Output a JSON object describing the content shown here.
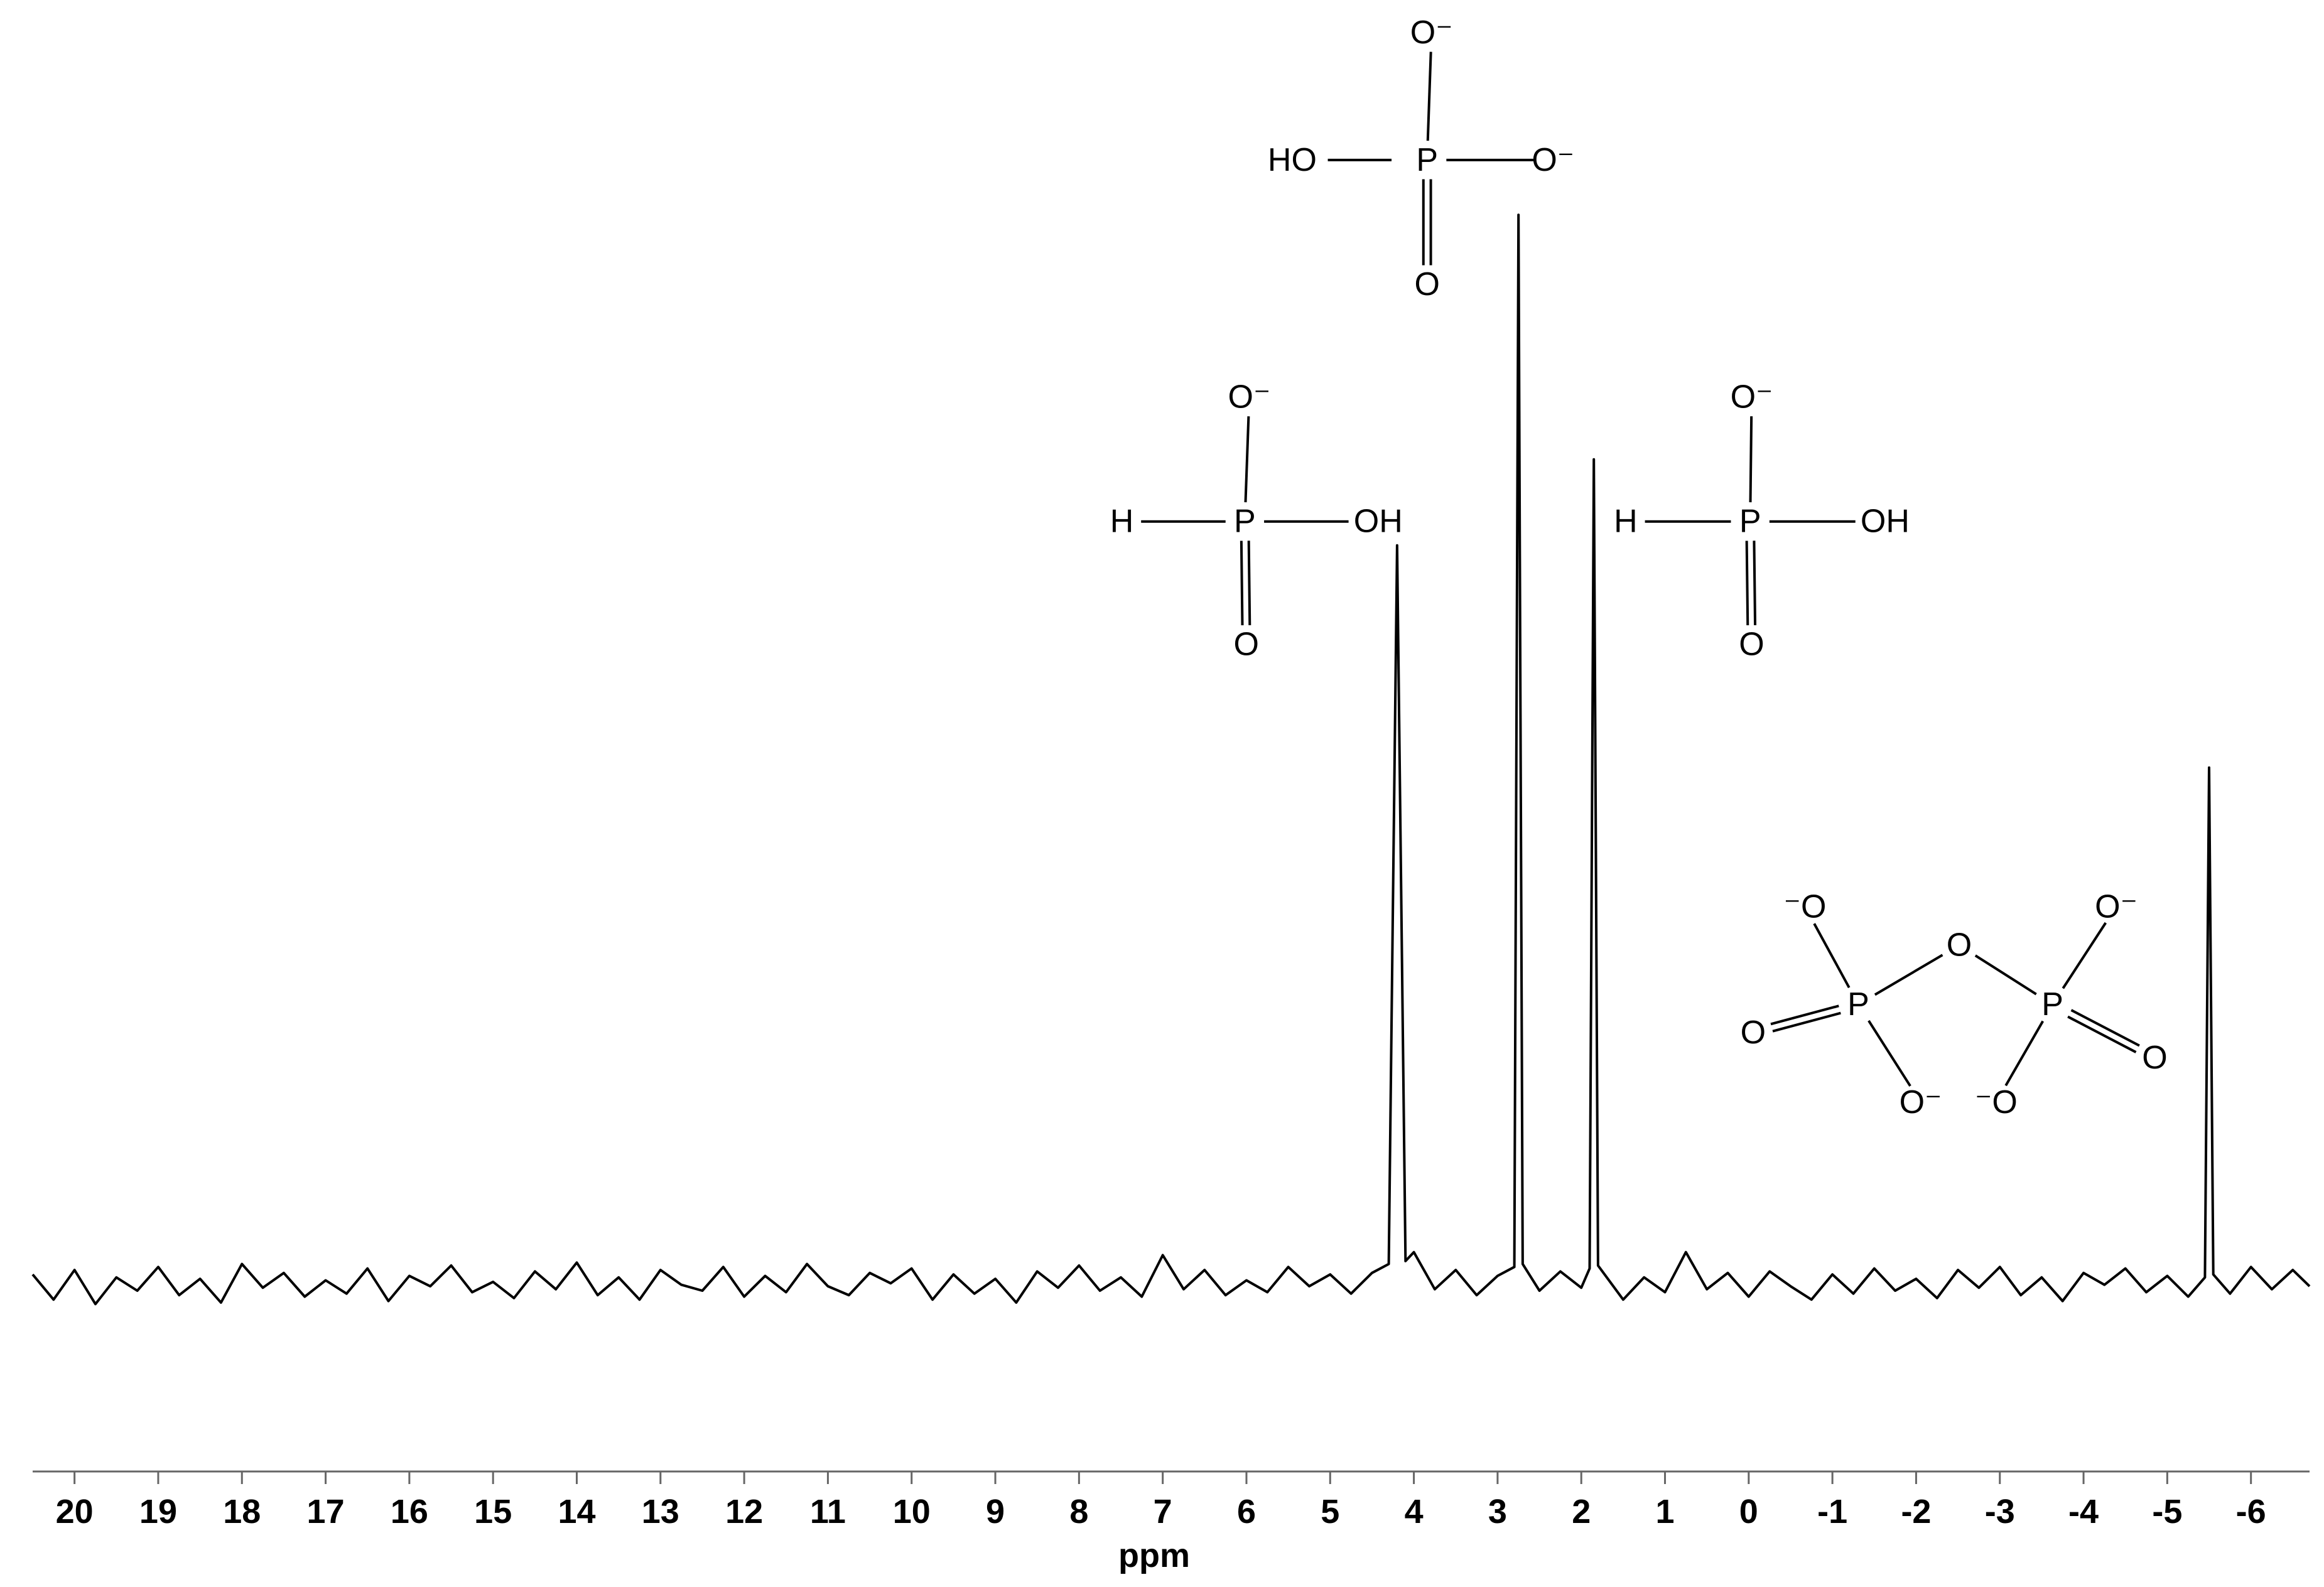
{
  "chart_data": {
    "type": "line",
    "xlabel": "ppm",
    "color": "#000000",
    "xlim": [
      20.5,
      -6.7
    ],
    "ylim": [
      -128,
      865
    ],
    "xticks": [
      20,
      19,
      18,
      17,
      16,
      15,
      14,
      13,
      12,
      11,
      10,
      9,
      8,
      7,
      6,
      5,
      4,
      3,
      2,
      1,
      0,
      -1,
      -2,
      -3,
      -4,
      -5,
      -6
    ],
    "x": [
      20.5,
      20.25,
      20,
      19.75,
      19.5,
      19.25,
      19,
      18.75,
      18.5,
      18.25,
      18,
      17.75,
      17.5,
      17.25,
      17,
      16.75,
      16.5,
      16.25,
      16,
      15.75,
      15.5,
      15.25,
      15,
      14.75,
      14.5,
      14.25,
      14,
      13.75,
      13.5,
      13.25,
      13,
      12.75,
      12.5,
      12.25,
      12,
      11.75,
      11.5,
      11.25,
      11,
      10.75,
      10.5,
      10.25,
      10,
      9.75,
      9.5,
      9.25,
      9,
      8.75,
      8.5,
      8.25,
      8,
      7.75,
      7.5,
      7.25,
      7,
      6.75,
      6.5,
      6.25,
      6,
      5.75,
      5.5,
      5.25,
      5,
      4.75,
      4.5,
      4.3,
      4.2,
      4.1,
      4,
      3.75,
      3.5,
      3.25,
      3,
      2.8,
      2.75,
      2.7,
      2.5,
      2.25,
      2,
      1.9,
      1.85,
      1.8,
      1.5,
      1.25,
      1,
      0.75,
      0.5,
      0.25,
      0,
      -0.25,
      -0.5,
      -0.75,
      -1,
      -1.25,
      -1.5,
      -1.75,
      -2,
      -2.25,
      -2.5,
      -2.75,
      -3,
      -3.25,
      -3.5,
      -3.75,
      -4,
      -4.25,
      -4.5,
      -4.75,
      -5,
      -5.25,
      -5.45,
      -5.5,
      -5.55,
      -5.75,
      -6,
      -6.25,
      -6.5,
      -6.7
    ],
    "values": [
      5,
      -12,
      8,
      -15,
      3,
      -6,
      10,
      -9,
      2,
      -14,
      12,
      -4,
      6,
      -10,
      1,
      -8,
      9,
      -13,
      4,
      -3,
      11,
      -7,
      0,
      -11,
      7,
      -5,
      13,
      -9,
      3,
      -12,
      8,
      -2,
      -6,
      10,
      -10,
      4,
      -7,
      12,
      -3,
      -9,
      6,
      -1,
      9,
      -12,
      5,
      -8,
      2,
      -14,
      7,
      -4,
      11,
      -6,
      3,
      -10,
      18,
      -5,
      8,
      -9,
      1,
      -7,
      10,
      -3,
      5,
      -8,
      6,
      12,
      497,
      14,
      20,
      -5,
      8,
      -9,
      4,
      10,
      720,
      12,
      -6,
      7,
      -4,
      9,
      555,
      11,
      -12,
      3,
      -7,
      20,
      -5,
      6,
      -10,
      7,
      -3,
      -12,
      5,
      -8,
      9,
      -6,
      2,
      -11,
      8,
      -4,
      10,
      -9,
      3,
      -13,
      6,
      -2,
      9,
      -7,
      4,
      -10,
      3,
      347,
      5,
      -8,
      10,
      -5,
      8,
      -3
    ],
    "structures": [
      {
        "atoms": [
          "O⁻",
          "HO",
          "P",
          "O⁻",
          "O"
        ]
      },
      {
        "atoms": [
          "O⁻",
          "H",
          "P",
          "OH",
          "O"
        ]
      },
      {
        "atoms": [
          "O⁻",
          "H",
          "P",
          "OH",
          "O"
        ]
      },
      {
        "atoms": [
          "⁻O",
          "O",
          "O⁻",
          "O",
          "P",
          "P",
          "O",
          "O⁻",
          "⁻O"
        ]
      }
    ]
  }
}
